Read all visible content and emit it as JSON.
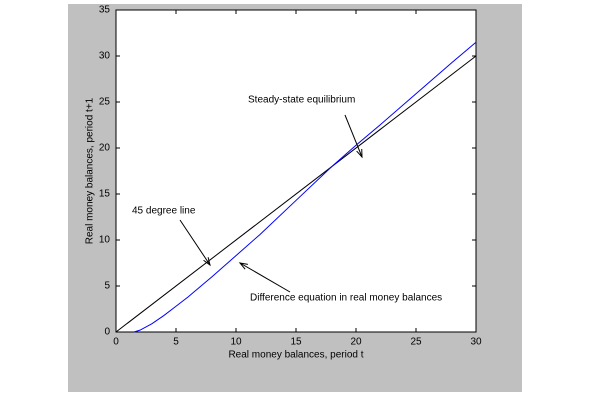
{
  "chart_data": {
    "type": "line",
    "xlabel": "Real money balances, period t",
    "ylabel": "Real money balances, period t+1",
    "series": [
      {
        "color": "#000000",
        "x": [
          0,
          30
        ],
        "values": [
          0,
          30
        ]
      },
      {
        "color": "#0000ff",
        "x": [
          1.5,
          2,
          3,
          4,
          5,
          6,
          8,
          10,
          12,
          15,
          18,
          20,
          22,
          25,
          28,
          30
        ],
        "values": [
          0,
          0.2,
          0.9,
          1.8,
          2.8,
          3.8,
          6,
          8.3,
          10.6,
          14.3,
          18,
          20.3,
          22.5,
          25.9,
          29.3,
          31.5
        ]
      }
    ],
    "annotations": [
      "Steady-state equilibrium",
      "45 degree line",
      "Difference equation in real money balances"
    ],
    "xlim": [
      0,
      30
    ],
    "xticks": [
      0,
      5,
      10,
      15,
      20,
      25,
      30
    ],
    "ylim": [
      0,
      35
    ],
    "yticks": [
      0,
      5,
      10,
      15,
      20,
      25,
      30,
      35
    ]
  }
}
